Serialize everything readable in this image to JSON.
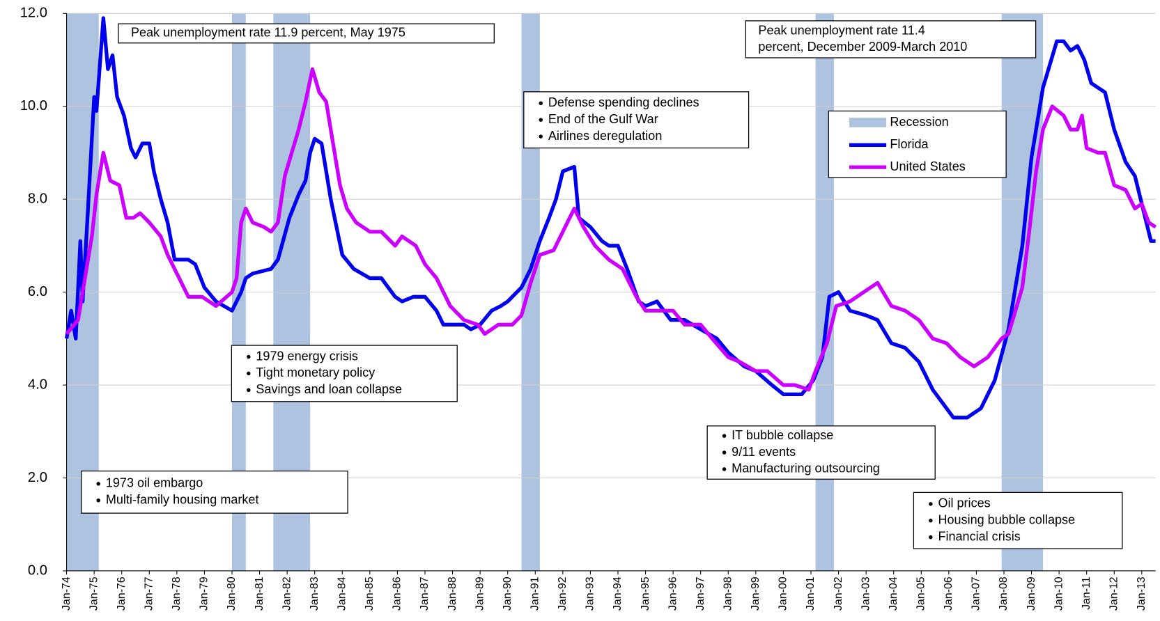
{
  "chart_data": {
    "type": "line",
    "xlim": [
      "1974-01",
      "2013-07"
    ],
    "ylim": [
      0,
      12
    ],
    "yticks": [
      {
        "value": 0,
        "label": "0.0"
      },
      {
        "value": 2,
        "label": "2.0"
      },
      {
        "value": 4,
        "label": "4.0"
      },
      {
        "value": 6,
        "label": "6.0"
      },
      {
        "value": 8,
        "label": "8.0"
      },
      {
        "value": 10,
        "label": "10.0"
      },
      {
        "value": 12,
        "label": "12.0"
      }
    ],
    "xticks": [
      {
        "value": "1974-01",
        "label": "Jan-74"
      },
      {
        "value": "1975-01",
        "label": "Jan-75"
      },
      {
        "value": "1976-01",
        "label": "Jan-76"
      },
      {
        "value": "1977-01",
        "label": "Jan-77"
      },
      {
        "value": "1978-01",
        "label": "Jan-78"
      },
      {
        "value": "1979-01",
        "label": "Jan-79"
      },
      {
        "value": "1980-01",
        "label": "Jan-80"
      },
      {
        "value": "1981-01",
        "label": "Jan-81"
      },
      {
        "value": "1982-01",
        "label": "Jan-82"
      },
      {
        "value": "1983-01",
        "label": "Jan-83"
      },
      {
        "value": "1984-01",
        "label": "Jan-84"
      },
      {
        "value": "1985-01",
        "label": "Jan-85"
      },
      {
        "value": "1986-01",
        "label": "Jan-86"
      },
      {
        "value": "1987-01",
        "label": "Jan-87"
      },
      {
        "value": "1988-01",
        "label": "Jan-88"
      },
      {
        "value": "1989-01",
        "label": "Jan-89"
      },
      {
        "value": "1990-01",
        "label": "Jan-90"
      },
      {
        "value": "1991-01",
        "label": "Jan-91"
      },
      {
        "value": "1992-01",
        "label": "Jan-92"
      },
      {
        "value": "1993-01",
        "label": "Jan-93"
      },
      {
        "value": "1994-01",
        "label": "Jan-94"
      },
      {
        "value": "1995-01",
        "label": "Jan-95"
      },
      {
        "value": "1996-01",
        "label": "Jan-96"
      },
      {
        "value": "1997-01",
        "label": "Jan-97"
      },
      {
        "value": "1998-01",
        "label": "Jan-98"
      },
      {
        "value": "1999-01",
        "label": "Jan-99"
      },
      {
        "value": "2000-01",
        "label": "Jan-00"
      },
      {
        "value": "2001-01",
        "label": "Jan-01"
      },
      {
        "value": "2002-01",
        "label": "Jan-02"
      },
      {
        "value": "2003-01",
        "label": "Jan-03"
      },
      {
        "value": "2004-01",
        "label": "Jan-04"
      },
      {
        "value": "2005-01",
        "label": "Jan-05"
      },
      {
        "value": "2006-01",
        "label": "Jan-06"
      },
      {
        "value": "2007-01",
        "label": "Jan-07"
      },
      {
        "value": "2008-01",
        "label": "Jan-08"
      },
      {
        "value": "2009-01",
        "label": "Jan-09"
      },
      {
        "value": "2010-01",
        "label": "Jan-10"
      },
      {
        "value": "2011-01",
        "label": "Jan-11"
      },
      {
        "value": "2012-01",
        "label": "Jan-12"
      },
      {
        "value": "2013-01",
        "label": "Jan-13"
      }
    ],
    "grid": true,
    "recessions": {
      "name": "Recession",
      "color": "#adc3df",
      "periods": [
        {
          "start": "1974-01",
          "end": "1975-03"
        },
        {
          "start": "1980-01",
          "end": "1980-07"
        },
        {
          "start": "1981-07",
          "end": "1982-11"
        },
        {
          "start": "1990-07",
          "end": "1991-03"
        },
        {
          "start": "2001-03",
          "end": "2001-11"
        },
        {
          "start": "2007-12",
          "end": "2009-06"
        }
      ]
    },
    "series": [
      {
        "name": "Florida",
        "color": "#0000ee",
        "x": [
          "1974-01",
          "1974-03",
          "1974-05",
          "1974-07",
          "1974-08",
          "1974-10",
          "1975-01",
          "1975-02",
          "1975-05",
          "1975-07",
          "1975-09",
          "1975-11",
          "1976-02",
          "1976-05",
          "1976-07",
          "1976-10",
          "1977-01",
          "1977-03",
          "1977-06",
          "1977-09",
          "1977-12",
          "1978-06",
          "1978-09",
          "1979-01",
          "1979-06",
          "1980-01",
          "1980-05",
          "1980-07",
          "1980-10",
          "1981-06",
          "1981-09",
          "1982-02",
          "1982-06",
          "1982-09",
          "1982-11",
          "1983-01",
          "1983-04",
          "1983-08",
          "1984-01",
          "1984-06",
          "1985-01",
          "1985-06",
          "1985-12",
          "1986-03",
          "1986-08",
          "1987-01",
          "1987-06",
          "1987-09",
          "1988-06",
          "1988-09",
          "1989-01",
          "1989-06",
          "1989-10",
          "1990-01",
          "1990-07",
          "1990-11",
          "1991-03",
          "1991-07",
          "1991-10",
          "1992-01",
          "1992-06",
          "1992-08",
          "1993-01",
          "1993-06",
          "1993-09",
          "1994-01",
          "1994-05",
          "1994-10",
          "1995-01",
          "1995-06",
          "1995-12",
          "1996-06",
          "1997-01",
          "1997-08",
          "1998-01",
          "1998-08",
          "1999-01",
          "1999-08",
          "2000-01",
          "2000-09",
          "2001-02",
          "2001-06",
          "2001-09",
          "2002-01",
          "2002-06",
          "2003-01",
          "2003-06",
          "2003-12",
          "2004-06",
          "2004-12",
          "2005-06",
          "2005-12",
          "2006-03",
          "2006-09",
          "2007-03",
          "2007-09",
          "2008-03",
          "2008-09",
          "2009-01",
          "2009-06",
          "2009-12",
          "2010-03",
          "2010-06",
          "2010-09",
          "2010-12",
          "2011-03",
          "2011-09",
          "2012-01",
          "2012-06",
          "2012-10",
          "2013-01",
          "2013-03",
          "2013-05",
          "2013-07"
        ],
        "values": [
          5.0,
          5.6,
          5.0,
          7.1,
          5.8,
          7.5,
          10.2,
          9.9,
          11.9,
          10.8,
          11.1,
          10.2,
          9.8,
          9.1,
          8.9,
          9.2,
          9.2,
          8.6,
          8.0,
          7.5,
          6.7,
          6.7,
          6.6,
          6.1,
          5.8,
          5.6,
          6.0,
          6.3,
          6.4,
          6.5,
          6.7,
          7.6,
          8.1,
          8.4,
          9.0,
          9.3,
          9.2,
          8.0,
          6.8,
          6.5,
          6.3,
          6.3,
          5.9,
          5.8,
          5.9,
          5.9,
          5.6,
          5.3,
          5.3,
          5.2,
          5.3,
          5.6,
          5.7,
          5.8,
          6.1,
          6.5,
          7.1,
          7.6,
          8.0,
          8.6,
          8.7,
          7.6,
          7.4,
          7.1,
          7.0,
          7.0,
          6.5,
          5.8,
          5.7,
          5.8,
          5.4,
          5.4,
          5.2,
          5.0,
          4.7,
          4.4,
          4.3,
          4.0,
          3.8,
          3.8,
          4.1,
          4.6,
          5.9,
          6.0,
          5.6,
          5.5,
          5.4,
          4.9,
          4.8,
          4.5,
          3.9,
          3.5,
          3.3,
          3.3,
          3.5,
          4.1,
          5.2,
          7.0,
          8.9,
          10.4,
          11.4,
          11.4,
          11.2,
          11.3,
          11.0,
          10.5,
          10.3,
          9.5,
          8.8,
          8.5,
          7.9,
          7.5,
          7.1,
          7.1
        ]
      },
      {
        "name": "United States",
        "color": "#cc00ff",
        "x": [
          "1974-01",
          "1974-06",
          "1974-12",
          "1975-02",
          "1975-05",
          "1975-08",
          "1975-12",
          "1976-03",
          "1976-06",
          "1976-09",
          "1977-01",
          "1977-06",
          "1977-09",
          "1978-01",
          "1978-06",
          "1978-12",
          "1979-06",
          "1980-01",
          "1980-03",
          "1980-05",
          "1980-07",
          "1980-10",
          "1981-03",
          "1981-06",
          "1981-09",
          "1981-12",
          "1982-03",
          "1982-06",
          "1982-09",
          "1982-12",
          "1983-03",
          "1983-06",
          "1983-09",
          "1983-12",
          "1984-03",
          "1984-07",
          "1985-01",
          "1985-06",
          "1985-12",
          "1986-03",
          "1986-09",
          "1987-01",
          "1987-06",
          "1987-12",
          "1988-06",
          "1988-12",
          "1989-03",
          "1989-09",
          "1990-03",
          "1990-07",
          "1990-11",
          "1991-03",
          "1991-09",
          "1992-01",
          "1992-06",
          "1992-10",
          "1993-03",
          "1993-09",
          "1994-03",
          "1994-09",
          "1995-01",
          "1995-06",
          "1996-01",
          "1996-06",
          "1997-01",
          "1997-06",
          "1998-01",
          "1998-06",
          "1999-01",
          "1999-06",
          "2000-01",
          "2000-06",
          "2000-12",
          "2001-03",
          "2001-08",
          "2001-12",
          "2002-06",
          "2002-12",
          "2003-06",
          "2003-12",
          "2004-06",
          "2004-12",
          "2005-06",
          "2005-12",
          "2006-06",
          "2006-12",
          "2007-06",
          "2007-12",
          "2008-03",
          "2008-06",
          "2008-09",
          "2008-12",
          "2009-03",
          "2009-06",
          "2009-10",
          "2010-03",
          "2010-06",
          "2010-09",
          "2010-11",
          "2011-01",
          "2011-06",
          "2011-09",
          "2012-01",
          "2012-06",
          "2012-10",
          "2013-01",
          "2013-04",
          "2013-07"
        ],
        "values": [
          5.1,
          5.4,
          7.2,
          8.1,
          9.0,
          8.4,
          8.3,
          7.6,
          7.6,
          7.7,
          7.5,
          7.2,
          6.8,
          6.4,
          5.9,
          5.9,
          5.7,
          6.0,
          6.3,
          7.5,
          7.8,
          7.5,
          7.4,
          7.3,
          7.5,
          8.5,
          9.0,
          9.5,
          10.1,
          10.8,
          10.3,
          10.1,
          9.2,
          8.3,
          7.8,
          7.5,
          7.3,
          7.3,
          7.0,
          7.2,
          7.0,
          6.6,
          6.3,
          5.7,
          5.4,
          5.3,
          5.1,
          5.3,
          5.3,
          5.5,
          6.2,
          6.8,
          6.9,
          7.3,
          7.8,
          7.4,
          7.0,
          6.7,
          6.5,
          5.9,
          5.6,
          5.6,
          5.6,
          5.3,
          5.3,
          5.0,
          4.6,
          4.5,
          4.3,
          4.3,
          4.0,
          4.0,
          3.9,
          4.3,
          4.9,
          5.7,
          5.8,
          6.0,
          6.2,
          5.7,
          5.6,
          5.4,
          5.0,
          4.9,
          4.6,
          4.4,
          4.6,
          5.0,
          5.1,
          5.6,
          6.1,
          7.3,
          8.6,
          9.5,
          10.0,
          9.8,
          9.5,
          9.5,
          9.8,
          9.1,
          9.0,
          9.0,
          8.3,
          8.2,
          7.8,
          7.9,
          7.5,
          7.4
        ]
      }
    ],
    "annotations": [
      {
        "lines": [
          "Peak unemployment rate 11.9 percent, May 1975"
        ],
        "bullets": false
      },
      {
        "lines": [
          "Peak unemployment rate 11.4",
          "percent, December 2009-March  2010"
        ],
        "bullets": false
      },
      {
        "lines": [
          "Defense spending declines",
          "End of the Gulf War",
          "Airlines deregulation"
        ],
        "bullets": true
      },
      {
        "lines": [
          "1979 energy crisis",
          "Tight monetary policy",
          "Savings and loan collapse"
        ],
        "bullets": true
      },
      {
        "lines": [
          "1973 oil embargo",
          "Multi-family housing market"
        ],
        "bullets": true
      },
      {
        "lines": [
          "IT bubble collapse",
          "9/11 events",
          "Manufacturing outsourcing"
        ],
        "bullets": true
      },
      {
        "lines": [
          "Oil prices",
          "Housing bubble collapse",
          "Financial crisis"
        ],
        "bullets": true
      }
    ]
  }
}
